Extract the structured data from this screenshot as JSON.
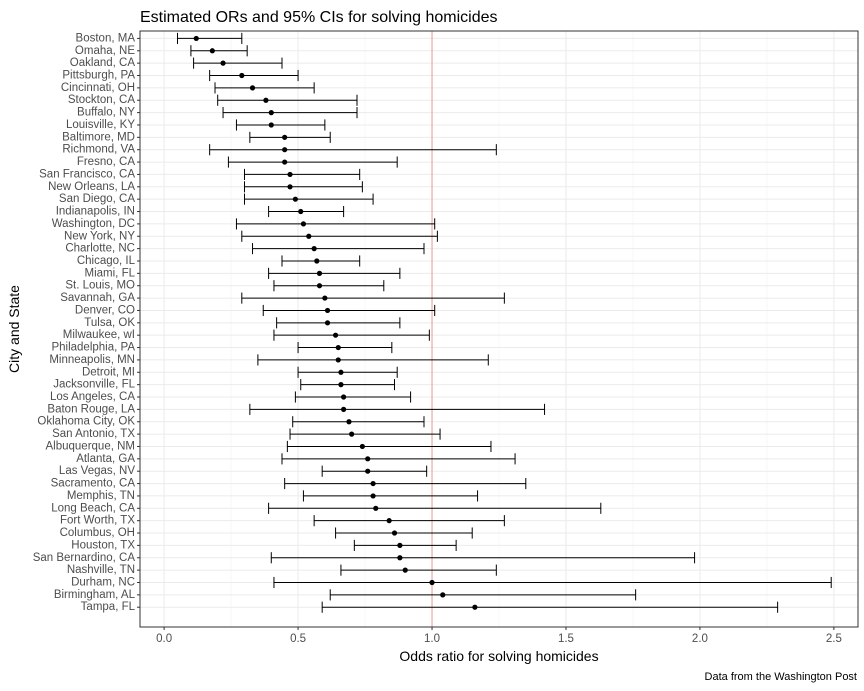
{
  "chart_data": {
    "type": "errorbar",
    "title": "Estimated ORs and 95% CIs for solving homicides",
    "xlabel": "Odds ratio for solving homicides",
    "ylabel": "City and State",
    "caption": "Data from the Washington Post",
    "xlim": [
      -0.09,
      2.59
    ],
    "xticks": [
      {
        "value": 0.0,
        "label": "0.0"
      },
      {
        "value": 0.5,
        "label": "0.5"
      },
      {
        "value": 1.0,
        "label": "1.0"
      },
      {
        "value": 1.5,
        "label": "1.5"
      },
      {
        "value": 2.0,
        "label": "2.0"
      },
      {
        "value": 2.5,
        "label": "2.5"
      }
    ],
    "reference_line": {
      "x": 1.0,
      "color": "#e9a1a4"
    },
    "grid": true,
    "theme": "bw",
    "cities": [
      {
        "name": "Boston, MA",
        "or": 0.12,
        "lo": 0.05,
        "hi": 0.29
      },
      {
        "name": "Omaha, NE",
        "or": 0.18,
        "lo": 0.1,
        "hi": 0.31
      },
      {
        "name": "Oakland, CA",
        "or": 0.22,
        "lo": 0.11,
        "hi": 0.44
      },
      {
        "name": "Pittsburgh, PA",
        "or": 0.29,
        "lo": 0.17,
        "hi": 0.5
      },
      {
        "name": "Cincinnati, OH",
        "or": 0.33,
        "lo": 0.19,
        "hi": 0.56
      },
      {
        "name": "Stockton, CA",
        "or": 0.38,
        "lo": 0.2,
        "hi": 0.72
      },
      {
        "name": "Buffalo, NY",
        "or": 0.4,
        "lo": 0.22,
        "hi": 0.72
      },
      {
        "name": "Louisville, KY",
        "or": 0.4,
        "lo": 0.27,
        "hi": 0.6
      },
      {
        "name": "Baltimore, MD",
        "or": 0.45,
        "lo": 0.32,
        "hi": 0.62
      },
      {
        "name": "Richmond, VA",
        "or": 0.45,
        "lo": 0.17,
        "hi": 1.24
      },
      {
        "name": "Fresno, CA",
        "or": 0.45,
        "lo": 0.24,
        "hi": 0.87
      },
      {
        "name": "San Francisco, CA",
        "or": 0.47,
        "lo": 0.3,
        "hi": 0.73
      },
      {
        "name": "New Orleans, LA",
        "or": 0.47,
        "lo": 0.3,
        "hi": 0.74
      },
      {
        "name": "San Diego, CA",
        "or": 0.49,
        "lo": 0.3,
        "hi": 0.78
      },
      {
        "name": "Indianapolis, IN",
        "or": 0.51,
        "lo": 0.39,
        "hi": 0.67
      },
      {
        "name": "Washington, DC",
        "or": 0.52,
        "lo": 0.27,
        "hi": 1.01
      },
      {
        "name": "New York, NY",
        "or": 0.54,
        "lo": 0.29,
        "hi": 1.02
      },
      {
        "name": "Charlotte, NC",
        "or": 0.56,
        "lo": 0.33,
        "hi": 0.97
      },
      {
        "name": "Chicago, IL",
        "or": 0.57,
        "lo": 0.44,
        "hi": 0.73
      },
      {
        "name": "Miami, FL",
        "or": 0.58,
        "lo": 0.39,
        "hi": 0.88
      },
      {
        "name": "St. Louis, MO",
        "or": 0.58,
        "lo": 0.41,
        "hi": 0.82
      },
      {
        "name": "Savannah, GA",
        "or": 0.6,
        "lo": 0.29,
        "hi": 1.27
      },
      {
        "name": "Denver, CO",
        "or": 0.61,
        "lo": 0.37,
        "hi": 1.01
      },
      {
        "name": "Tulsa, OK",
        "or": 0.61,
        "lo": 0.42,
        "hi": 0.88
      },
      {
        "name": "Milwaukee, wI",
        "or": 0.64,
        "lo": 0.41,
        "hi": 0.99
      },
      {
        "name": "Philadelphia, PA",
        "or": 0.65,
        "lo": 0.5,
        "hi": 0.85
      },
      {
        "name": "Minneapolis, MN",
        "or": 0.65,
        "lo": 0.35,
        "hi": 1.21
      },
      {
        "name": "Detroit, MI",
        "or": 0.66,
        "lo": 0.5,
        "hi": 0.87
      },
      {
        "name": "Jacksonville, FL",
        "or": 0.66,
        "lo": 0.51,
        "hi": 0.86
      },
      {
        "name": "Los Angeles, CA",
        "or": 0.67,
        "lo": 0.49,
        "hi": 0.92
      },
      {
        "name": "Baton Rouge, LA",
        "or": 0.67,
        "lo": 0.32,
        "hi": 1.42
      },
      {
        "name": "Oklahoma City, OK",
        "or": 0.69,
        "lo": 0.48,
        "hi": 0.97
      },
      {
        "name": "San Antonio, TX",
        "or": 0.7,
        "lo": 0.47,
        "hi": 1.03
      },
      {
        "name": "Albuquerque, NM",
        "or": 0.74,
        "lo": 0.46,
        "hi": 1.22
      },
      {
        "name": "Atlanta, GA",
        "or": 0.76,
        "lo": 0.44,
        "hi": 1.31
      },
      {
        "name": "Las Vegas, NV",
        "or": 0.76,
        "lo": 0.59,
        "hi": 0.98
      },
      {
        "name": "Sacramento, CA",
        "or": 0.78,
        "lo": 0.45,
        "hi": 1.35
      },
      {
        "name": "Memphis, TN",
        "or": 0.78,
        "lo": 0.52,
        "hi": 1.17
      },
      {
        "name": "Long Beach, CA",
        "or": 0.79,
        "lo": 0.39,
        "hi": 1.63
      },
      {
        "name": "Fort Worth, TX",
        "or": 0.84,
        "lo": 0.56,
        "hi": 1.27
      },
      {
        "name": "Columbus, OH",
        "or": 0.86,
        "lo": 0.64,
        "hi": 1.15
      },
      {
        "name": "Houston, TX",
        "or": 0.88,
        "lo": 0.71,
        "hi": 1.09
      },
      {
        "name": "San Bernardino, CA",
        "or": 0.88,
        "lo": 0.4,
        "hi": 1.98
      },
      {
        "name": "Nashville, TN",
        "or": 0.9,
        "lo": 0.66,
        "hi": 1.24
      },
      {
        "name": "Durham, NC",
        "or": 1.0,
        "lo": 0.41,
        "hi": 2.49
      },
      {
        "name": "Birmingham, AL",
        "or": 1.04,
        "lo": 0.62,
        "hi": 1.76
      },
      {
        "name": "Tampa, FL",
        "or": 1.16,
        "lo": 0.59,
        "hi": 2.29
      }
    ]
  }
}
